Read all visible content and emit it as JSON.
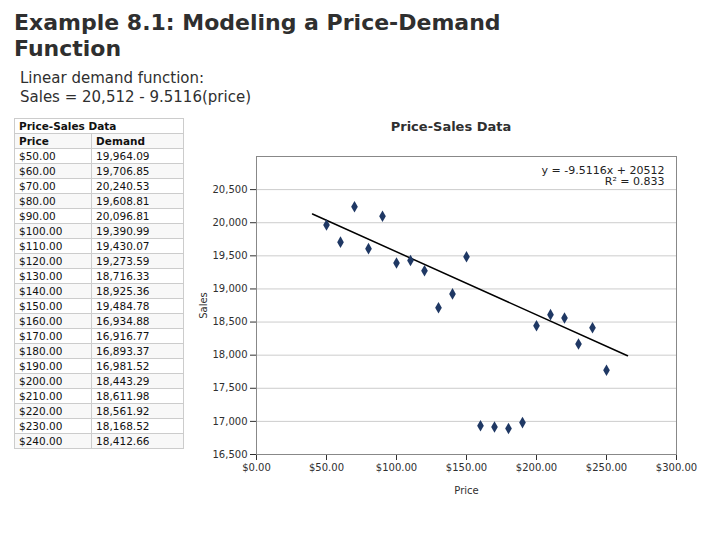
{
  "title": [
    "Example 8.1: Modeling a Price-Demand",
    "Function"
  ],
  "subtitle": [
    "Linear demand function:",
    "Sales = 20,512 - 9.5116(price)"
  ],
  "chart_data": [
    {
      "type": "table",
      "title": "Price-Sales Data",
      "columns": [
        "Price",
        "Demand"
      ],
      "rows": [
        [
          {
            "value": 50,
            "label": "$50.00"
          },
          {
            "value": 19964.09,
            "label": "19,964.09"
          }
        ],
        [
          {
            "value": 60,
            "label": "$60.00"
          },
          {
            "value": 19706.85,
            "label": "19,706.85"
          }
        ],
        [
          {
            "value": 70,
            "label": "$70.00"
          },
          {
            "value": 20240.53,
            "label": "20,240.53"
          }
        ],
        [
          {
            "value": 80,
            "label": "$80.00"
          },
          {
            "value": 19608.81,
            "label": "19,608.81"
          }
        ],
        [
          {
            "value": 90,
            "label": "$90.00"
          },
          {
            "value": 20096.81,
            "label": "20,096.81"
          }
        ],
        [
          {
            "value": 100,
            "label": "$100.00"
          },
          {
            "value": 19390.99,
            "label": "19,390.99"
          }
        ],
        [
          {
            "value": 110,
            "label": "$110.00"
          },
          {
            "value": 19430.07,
            "label": "19,430.07"
          }
        ],
        [
          {
            "value": 120,
            "label": "$120.00"
          },
          {
            "value": 19273.59,
            "label": "19,273.59"
          }
        ],
        [
          {
            "value": 130,
            "label": "$130.00"
          },
          {
            "value": 18716.33,
            "label": "18,716.33"
          }
        ],
        [
          {
            "value": 140,
            "label": "$140.00"
          },
          {
            "value": 18925.36,
            "label": "18,925.36"
          }
        ],
        [
          {
            "value": 150,
            "label": "$150.00"
          },
          {
            "value": 19484.78,
            "label": "19,484.78"
          }
        ],
        [
          {
            "value": 160,
            "label": "$160.00"
          },
          {
            "value": 16934.88,
            "label": "16,934.88"
          }
        ],
        [
          {
            "value": 170,
            "label": "$170.00"
          },
          {
            "value": 16916.77,
            "label": "16,916.77"
          }
        ],
        [
          {
            "value": 180,
            "label": "$180.00"
          },
          {
            "value": 16893.37,
            "label": "16,893.37"
          }
        ],
        [
          {
            "value": 190,
            "label": "$190.00"
          },
          {
            "value": 16981.52,
            "label": "16,981.52"
          }
        ],
        [
          {
            "value": 200,
            "label": "$200.00"
          },
          {
            "value": 18443.29,
            "label": "18,443.29"
          }
        ],
        [
          {
            "value": 210,
            "label": "$210.00"
          },
          {
            "value": 18611.98,
            "label": "18,611.98"
          }
        ],
        [
          {
            "value": 220,
            "label": "$220.00"
          },
          {
            "value": 18561.92,
            "label": "18,561.92"
          }
        ],
        [
          {
            "value": 230,
            "label": "$230.00"
          },
          {
            "value": 18168.52,
            "label": "18,168.52"
          }
        ],
        [
          {
            "value": 240,
            "label": "$240.00"
          },
          {
            "value": 18412.66,
            "label": "18,412.66"
          }
        ]
      ]
    },
    {
      "type": "scatter",
      "title": "Price-Sales Data",
      "xlabel": "Price",
      "ylabel": "Sales",
      "x": [
        50,
        60,
        70,
        80,
        90,
        100,
        110,
        120,
        130,
        140,
        150,
        160,
        170,
        180,
        190,
        200,
        210,
        220,
        230,
        240,
        250
      ],
      "values": [
        19964.09,
        19706.85,
        20240.53,
        19608.81,
        20096.81,
        19390.99,
        19430.07,
        19273.59,
        18716.33,
        18925.36,
        19484.78,
        16934.88,
        16916.77,
        16893.37,
        16981.52,
        18443.29,
        18611.98,
        18561.92,
        18168.52,
        18412.66,
        17771.39
      ],
      "color": "#1F3864",
      "marker": "diamond",
      "trendline": {
        "x": [
          40,
          265
        ],
        "values": [
          20131.536,
          17991.426
        ],
        "color": "#000000",
        "line_style": "solid"
      },
      "annotations": [
        "y = -9.5116x + 20512",
        "R² = 0.833"
      ],
      "xlim": [
        0,
        300
      ],
      "xticks": [
        {
          "value": 0,
          "label": "$0.00"
        },
        {
          "value": 50,
          "label": "$50.00"
        },
        {
          "value": 100,
          "label": "$100.00"
        },
        {
          "value": 150,
          "label": "$150.00"
        },
        {
          "value": 200,
          "label": "$200.00"
        },
        {
          "value": 250,
          "label": "$250.00"
        },
        {
          "value": 300,
          "label": "$300.00"
        }
      ],
      "ylim": [
        16500,
        21000
      ],
      "yticks": [
        {
          "value": 16500,
          "label": "16,500"
        },
        {
          "value": 17000,
          "label": "17,000"
        },
        {
          "value": 17500,
          "label": "17,500"
        },
        {
          "value": 18000,
          "label": "18,000"
        },
        {
          "value": 18500,
          "label": "18,500"
        },
        {
          "value": 19000,
          "label": "19,000"
        },
        {
          "value": 19500,
          "label": "19,500"
        },
        {
          "value": 20000,
          "label": "20,000"
        },
        {
          "value": 20500,
          "label": "20,500"
        }
      ],
      "grid": "y"
    }
  ]
}
